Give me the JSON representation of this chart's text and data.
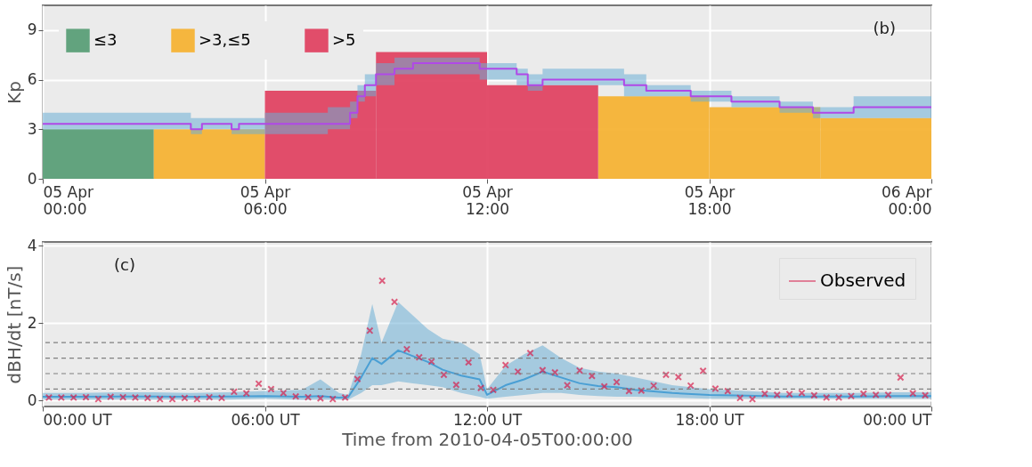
{
  "chart_data": [
    {
      "type": "histogram",
      "ylabel": "Kp",
      "annotations": [
        "(b)"
      ],
      "legend": "top left",
      "grid": true,
      "xlim": [
        "2010-04-05T00:00",
        "2010-04-06T00:00"
      ],
      "xticks": [
        {
          "value": "2010-04-05T00:00",
          "label": "05 Apr\n00:00"
        },
        {
          "value": "2010-04-05T06:00",
          "label": "05 Apr\n06:00"
        },
        {
          "value": "2010-04-05T12:00",
          "label": "05 Apr\n12:00"
        },
        {
          "value": "2010-04-05T18:00",
          "label": "05 Apr\n18:00"
        },
        {
          "value": "2010-04-06T00:00",
          "label": "06 Apr\n00:00"
        }
      ],
      "ylim": [
        0,
        10.5
      ],
      "yticks": [
        0,
        3,
        6,
        9
      ],
      "bins": [
        "2010-04-05T00:00",
        "2010-04-05T03:00",
        "2010-04-05T06:00",
        "2010-04-05T09:00",
        "2010-04-05T12:00",
        "2010-04-05T15:00",
        "2010-04-05T18:00",
        "2010-04-05T21:00",
        "2010-04-06T00:00"
      ],
      "series": [
        {
          "name": "≤3",
          "color": "#5b9f78",
          "values": [
            3.0,
            null,
            null,
            null,
            null,
            null,
            null,
            null
          ]
        },
        {
          "name": ">3,≤5",
          "color": "#f5b335",
          "values": [
            null,
            3.0,
            null,
            null,
            null,
            5.0,
            4.33,
            3.67
          ]
        },
        {
          "name": ">5",
          "color": "#e04563",
          "values": [
            null,
            null,
            5.33,
            7.67,
            5.67,
            null,
            null,
            null
          ]
        },
        {
          "type": "step",
          "color": "#b048e8",
          "x": [
            "2010-04-05T00:00",
            "2010-04-05T04:00",
            "2010-04-05T04:18",
            "2010-04-05T05:06",
            "2010-04-05T05:18",
            "2010-04-05T06:00",
            "2010-04-05T07:42",
            "2010-04-05T08:18",
            "2010-04-05T08:30",
            "2010-04-05T08:42",
            "2010-04-05T09:00",
            "2010-04-05T09:30",
            "2010-04-05T10:00",
            "2010-04-05T11:48",
            "2010-04-05T12:48",
            "2010-04-05T13:06",
            "2010-04-05T13:30",
            "2010-04-05T15:42",
            "2010-04-05T16:18",
            "2010-04-05T17:30",
            "2010-04-05T18:36",
            "2010-04-05T19:54",
            "2010-04-05T20:48",
            "2010-04-05T21:54",
            "2010-04-06T00:00"
          ],
          "values": [
            3.33,
            3.0,
            3.33,
            3.0,
            3.33,
            3.33,
            3.33,
            4.0,
            5.0,
            5.67,
            6.33,
            6.67,
            7.0,
            6.67,
            6.33,
            5.67,
            6.0,
            5.67,
            5.33,
            5.0,
            4.67,
            4.33,
            4.0,
            4.33,
            4.33
          ],
          "lower": [
            3.0,
            2.7,
            3.0,
            2.7,
            2.7,
            2.7,
            3.0,
            3.67,
            4.67,
            5.0,
            5.67,
            6.33,
            6.33,
            6.0,
            5.67,
            5.33,
            5.67,
            5.0,
            5.0,
            4.67,
            4.33,
            4.0,
            3.67,
            3.67,
            3.67
          ],
          "upper": [
            4.0,
            3.67,
            3.67,
            3.67,
            3.67,
            4.0,
            4.33,
            4.67,
            5.67,
            6.33,
            7.0,
            7.33,
            7.33,
            7.0,
            6.67,
            6.33,
            6.67,
            6.33,
            5.67,
            5.33,
            5.0,
            4.67,
            4.33,
            5.0,
            5.0
          ]
        }
      ]
    },
    {
      "type": "scatter",
      "ylabel": "dBH/dt  [nT/s]",
      "xlabel": "Time from 2010-04-05T00:00:00",
      "annotations": [
        "(c)"
      ],
      "legend": "top right",
      "grid": true,
      "xlim": [
        "2010-04-05T00:00",
        "2010-04-06T00:00"
      ],
      "xticks": [
        {
          "value": "2010-04-05T00:00",
          "label": "00:00 UT"
        },
        {
          "value": "2010-04-05T06:00",
          "label": "06:00 UT"
        },
        {
          "value": "2010-04-05T12:00",
          "label": "12:00 UT"
        },
        {
          "value": "2010-04-05T18:00",
          "label": "18:00 UT"
        },
        {
          "value": "2010-04-06T00:00",
          "label": "00:00 UT"
        }
      ],
      "ylim": [
        -0.15,
        4.1
      ],
      "yticks": [
        0,
        2,
        4
      ],
      "ref_lines": [
        {
          "axis": "y",
          "value": 0.3,
          "color": "#808080",
          "line_style": "dashed"
        },
        {
          "axis": "y",
          "value": 0.7,
          "color": "#808080",
          "line_style": "dashed"
        },
        {
          "axis": "y",
          "value": 1.1,
          "color": "#808080",
          "line_style": "dashed"
        },
        {
          "axis": "y",
          "value": 1.5,
          "color": "#808080",
          "line_style": "dashed"
        }
      ],
      "series": [
        {
          "type": "line",
          "color": "#4a9fd4",
          "x": [
            "2010-04-05T00:00",
            "2010-04-05T01:00",
            "2010-04-05T02:00",
            "2010-04-05T03:00",
            "2010-04-05T04:00",
            "2010-04-05T05:00",
            "2010-04-05T06:00",
            "2010-04-05T07:00",
            "2010-04-05T07:30",
            "2010-04-05T08:00",
            "2010-04-05T08:15",
            "2010-04-05T08:36",
            "2010-04-05T08:54",
            "2010-04-05T09:09",
            "2010-04-05T09:36",
            "2010-04-05T10:00",
            "2010-04-05T10:24",
            "2010-04-05T10:48",
            "2010-04-05T11:18",
            "2010-04-05T11:48",
            "2010-04-05T12:00",
            "2010-04-05T12:30",
            "2010-04-05T13:00",
            "2010-04-05T13:30",
            "2010-04-05T14:00",
            "2010-04-05T14:30",
            "2010-04-05T15:00",
            "2010-04-05T15:30",
            "2010-04-05T16:00",
            "2010-04-05T17:00",
            "2010-04-05T18:00",
            "2010-04-05T19:00",
            "2010-04-05T20:00",
            "2010-04-05T21:00",
            "2010-04-05T22:00",
            "2010-04-05T23:00",
            "2010-04-06T00:00"
          ],
          "values": [
            0.1,
            0.1,
            0.11,
            0.11,
            0.1,
            0.11,
            0.12,
            0.1,
            0.12,
            0.08,
            0.09,
            0.6,
            1.1,
            0.95,
            1.3,
            1.15,
            1.0,
            0.8,
            0.65,
            0.55,
            0.15,
            0.4,
            0.55,
            0.75,
            0.6,
            0.45,
            0.38,
            0.35,
            0.28,
            0.2,
            0.15,
            0.13,
            0.11,
            0.11,
            0.11,
            0.12,
            0.12
          ],
          "lower": [
            0.03,
            0.03,
            0.03,
            0.03,
            0.03,
            0.03,
            0.05,
            0.02,
            0.03,
            0.02,
            0.03,
            0.2,
            0.4,
            0.4,
            0.5,
            0.45,
            0.4,
            0.35,
            0.2,
            0.1,
            0.05,
            0.1,
            0.15,
            0.2,
            0.2,
            0.15,
            0.12,
            0.1,
            0.1,
            0.08,
            0.05,
            0.05,
            0.05,
            0.05,
            0.05,
            0.05,
            0.05
          ],
          "upper": [
            0.2,
            0.2,
            0.22,
            0.22,
            0.2,
            0.22,
            0.25,
            0.28,
            0.55,
            0.2,
            0.15,
            1.2,
            2.5,
            1.5,
            2.55,
            2.2,
            1.85,
            1.6,
            1.5,
            1.2,
            0.3,
            0.9,
            1.2,
            1.43,
            1.1,
            0.85,
            0.75,
            0.7,
            0.6,
            0.4,
            0.3,
            0.25,
            0.2,
            0.2,
            0.2,
            0.22,
            0.22
          ]
        },
        {
          "name": "Observed",
          "type": "scatter",
          "color": "#d6204e",
          "marker": "cross",
          "x": [
            "2010-04-05T00:10",
            "2010-04-05T00:30",
            "2010-04-05T00:50",
            "2010-04-05T01:10",
            "2010-04-05T01:30",
            "2010-04-05T01:50",
            "2010-04-05T02:10",
            "2010-04-05T02:30",
            "2010-04-05T02:50",
            "2010-04-05T03:10",
            "2010-04-05T03:30",
            "2010-04-05T03:50",
            "2010-04-05T04:10",
            "2010-04-05T04:30",
            "2010-04-05T04:50",
            "2010-04-05T05:10",
            "2010-04-05T05:30",
            "2010-04-05T05:50",
            "2010-04-05T06:10",
            "2010-04-05T06:30",
            "2010-04-05T06:50",
            "2010-04-05T07:10",
            "2010-04-05T07:30",
            "2010-04-05T07:50",
            "2010-04-05T08:10",
            "2010-04-05T08:30",
            "2010-04-05T08:50",
            "2010-04-05T09:10",
            "2010-04-05T09:30",
            "2010-04-05T09:50",
            "2010-04-05T10:10",
            "2010-04-05T10:30",
            "2010-04-05T10:50",
            "2010-04-05T11:10",
            "2010-04-05T11:30",
            "2010-04-05T11:50",
            "2010-04-05T12:10",
            "2010-04-05T12:30",
            "2010-04-05T12:50",
            "2010-04-05T13:10",
            "2010-04-05T13:30",
            "2010-04-05T13:50",
            "2010-04-05T14:10",
            "2010-04-05T14:30",
            "2010-04-05T14:50",
            "2010-04-05T15:10",
            "2010-04-05T15:30",
            "2010-04-05T15:50",
            "2010-04-05T16:10",
            "2010-04-05T16:30",
            "2010-04-05T16:50",
            "2010-04-05T17:10",
            "2010-04-05T17:30",
            "2010-04-05T17:50",
            "2010-04-05T18:10",
            "2010-04-05T18:30",
            "2010-04-05T18:50",
            "2010-04-05T19:10",
            "2010-04-05T19:30",
            "2010-04-05T19:50",
            "2010-04-05T20:10",
            "2010-04-05T20:30",
            "2010-04-05T20:50",
            "2010-04-05T21:10",
            "2010-04-05T21:30",
            "2010-04-05T21:50",
            "2010-04-05T22:10",
            "2010-04-05T22:30",
            "2010-04-05T22:50",
            "2010-04-05T23:10",
            "2010-04-05T23:30",
            "2010-04-05T23:50"
          ],
          "values": [
            0.08,
            0.08,
            0.08,
            0.09,
            0.04,
            0.1,
            0.09,
            0.08,
            0.07,
            0.04,
            0.04,
            0.07,
            0.04,
            0.09,
            0.07,
            0.23,
            0.19,
            0.44,
            0.3,
            0.2,
            0.11,
            0.09,
            0.06,
            0.04,
            0.08,
            0.56,
            1.81,
            3.1,
            2.55,
            1.33,
            1.12,
            1.01,
            0.67,
            0.41,
            0.99,
            0.33,
            0.28,
            0.92,
            0.75,
            1.23,
            0.79,
            0.73,
            0.4,
            0.78,
            0.64,
            0.37,
            0.48,
            0.25,
            0.26,
            0.39,
            0.67,
            0.61,
            0.39,
            0.77,
            0.31,
            0.25,
            0.07,
            0.04,
            0.18,
            0.15,
            0.17,
            0.2,
            0.14,
            0.08,
            0.08,
            0.12,
            0.18,
            0.15,
            0.15,
            0.6,
            0.19,
            0.14
          ]
        }
      ]
    }
  ]
}
